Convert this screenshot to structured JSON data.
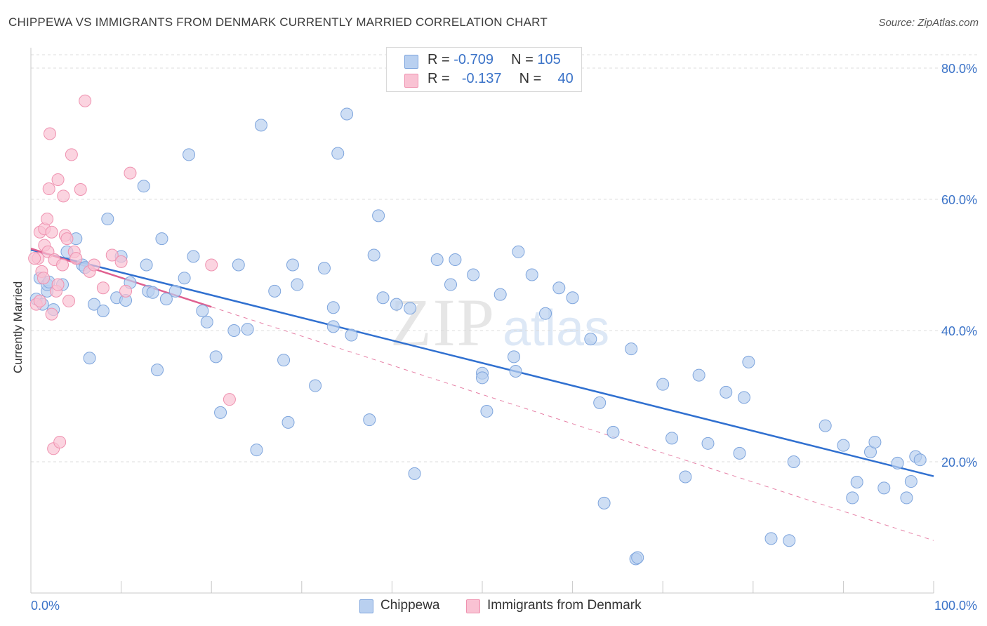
{
  "title": "CHIPPEWA VS IMMIGRANTS FROM DENMARK CURRENTLY MARRIED CORRELATION CHART",
  "source": "Source: ZipAtlas.com",
  "watermark_zip": "ZIP",
  "watermark_atlas": "atlas",
  "legend_top": {
    "rows": [
      {
        "r_label": "R =",
        "r_value": "-0.709",
        "n_label": "N =",
        "n_value": "105"
      },
      {
        "r_label": "R =",
        "r_value": "-0.137",
        "n_label": "N =",
        "n_value": "40"
      }
    ]
  },
  "legend_bottom": {
    "items": [
      {
        "label": "Chippewa"
      },
      {
        "label": "Immigrants from Denmark"
      }
    ]
  },
  "colors": {
    "blue_fill": "#b9d0f0",
    "blue_stroke": "#7ea5dd",
    "blue_line": "#3070d0",
    "pink_fill": "#f9c2d3",
    "pink_stroke": "#ef92b0",
    "pink_line": "#e06090",
    "axis_text": "#3b73c8",
    "grid": "#dcdcdc"
  },
  "chart_data": {
    "type": "scatter",
    "title": "CHIPPEWA VS IMMIGRANTS FROM DENMARK CURRENTLY MARRIED CORRELATION CHART",
    "xlabel": "",
    "ylabel": "Currently Married",
    "xlim": [
      0,
      100
    ],
    "ylim": [
      0,
      80.0
    ],
    "x_tick_labels": [
      "0.0%",
      "100.0%"
    ],
    "y_ticks": [
      20,
      40,
      60,
      80
    ],
    "y_tick_labels": [
      "20.0%",
      "40.0%",
      "60.0%",
      "80.0%"
    ],
    "grid": true,
    "legend_position": "top-center",
    "series": [
      {
        "name": "Chippewa",
        "color": "#b9d0f0",
        "points": [
          [
            1.8,
            46.0
          ],
          [
            0.6,
            44.8
          ],
          [
            1.3,
            44.0
          ],
          [
            1.0,
            48.0
          ],
          [
            1.8,
            47.0
          ],
          [
            2.0,
            47.4
          ],
          [
            3.5,
            47.0
          ],
          [
            4.0,
            52.0
          ],
          [
            5.0,
            54.0
          ],
          [
            5.7,
            50.0
          ],
          [
            6.0,
            49.6
          ],
          [
            7.0,
            44.0
          ],
          [
            8.0,
            43.0
          ],
          [
            8.5,
            57.0
          ],
          [
            9.5,
            45.0
          ],
          [
            10.0,
            51.3
          ],
          [
            10.5,
            44.6
          ],
          [
            11.0,
            47.3
          ],
          [
            12.5,
            62.0
          ],
          [
            12.8,
            50.0
          ],
          [
            13.0,
            46.0
          ],
          [
            13.5,
            45.8
          ],
          [
            14.0,
            34.0
          ],
          [
            14.5,
            54.0
          ],
          [
            15.0,
            44.8
          ],
          [
            16.0,
            46.0
          ],
          [
            17.0,
            48.0
          ],
          [
            17.5,
            66.8
          ],
          [
            18.0,
            51.3
          ],
          [
            19.0,
            43.0
          ],
          [
            19.5,
            41.3
          ],
          [
            20.5,
            36.0
          ],
          [
            21.0,
            27.5
          ],
          [
            22.5,
            40.0
          ],
          [
            23.0,
            50.0
          ],
          [
            24.0,
            40.2
          ],
          [
            25.0,
            21.8
          ],
          [
            25.5,
            71.3
          ],
          [
            27.0,
            46.0
          ],
          [
            28.0,
            35.5
          ],
          [
            28.5,
            26.0
          ],
          [
            29.0,
            50.0
          ],
          [
            29.5,
            47.0
          ],
          [
            31.5,
            31.6
          ],
          [
            32.5,
            49.5
          ],
          [
            33.5,
            43.5
          ],
          [
            33.5,
            40.6
          ],
          [
            34.0,
            67.0
          ],
          [
            35.0,
            73.0
          ],
          [
            35.5,
            39.3
          ],
          [
            37.5,
            26.4
          ],
          [
            38.0,
            51.5
          ],
          [
            38.5,
            57.5
          ],
          [
            39.0,
            45.0
          ],
          [
            40.5,
            44.0
          ],
          [
            42.0,
            43.4
          ],
          [
            42.5,
            18.2
          ],
          [
            45.0,
            50.8
          ],
          [
            46.5,
            47.0
          ],
          [
            47.0,
            50.8
          ],
          [
            49.0,
            48.5
          ],
          [
            50.0,
            33.5
          ],
          [
            50.0,
            32.8
          ],
          [
            50.5,
            27.7
          ],
          [
            52.0,
            45.5
          ],
          [
            53.5,
            36.0
          ],
          [
            53.7,
            33.8
          ],
          [
            54.0,
            52.0
          ],
          [
            55.5,
            48.5
          ],
          [
            57.0,
            42.6
          ],
          [
            58.5,
            46.5
          ],
          [
            60.0,
            45.0
          ],
          [
            62.0,
            38.7
          ],
          [
            63.0,
            29.0
          ],
          [
            63.5,
            13.7
          ],
          [
            64.5,
            24.5
          ],
          [
            66.5,
            37.2
          ],
          [
            67.0,
            5.2
          ],
          [
            67.2,
            5.4
          ],
          [
            70.0,
            31.8
          ],
          [
            71.0,
            23.6
          ],
          [
            72.5,
            17.7
          ],
          [
            74.0,
            33.2
          ],
          [
            75.0,
            22.8
          ],
          [
            77.0,
            30.6
          ],
          [
            78.5,
            21.3
          ],
          [
            79.0,
            29.8
          ],
          [
            79.5,
            35.2
          ],
          [
            82.0,
            8.3
          ],
          [
            84.0,
            8.0
          ],
          [
            84.5,
            20.0
          ],
          [
            88.0,
            25.5
          ],
          [
            90.0,
            22.5
          ],
          [
            91.0,
            14.5
          ],
          [
            91.5,
            16.9
          ],
          [
            93.0,
            21.5
          ],
          [
            93.5,
            23.0
          ],
          [
            94.5,
            16.0
          ],
          [
            96.0,
            19.8
          ],
          [
            97.0,
            14.5
          ],
          [
            97.5,
            17.0
          ],
          [
            98.0,
            20.8
          ],
          [
            98.5,
            20.3
          ],
          [
            6.5,
            35.8
          ],
          [
            2.5,
            43.2
          ]
        ]
      },
      {
        "name": "Immigrants from Denmark",
        "color": "#f9c2d3",
        "points": [
          [
            0.6,
            44.0
          ],
          [
            0.8,
            51.0
          ],
          [
            1.0,
            55.0
          ],
          [
            1.2,
            49.0
          ],
          [
            1.5,
            55.5
          ],
          [
            1.5,
            53.0
          ],
          [
            1.8,
            57.0
          ],
          [
            1.9,
            52.0
          ],
          [
            2.0,
            61.6
          ],
          [
            2.1,
            70.0
          ],
          [
            2.3,
            55.0
          ],
          [
            2.3,
            42.5
          ],
          [
            2.5,
            22.0
          ],
          [
            2.6,
            50.8
          ],
          [
            2.8,
            46.0
          ],
          [
            3.0,
            47.0
          ],
          [
            3.0,
            63.0
          ],
          [
            3.2,
            23.0
          ],
          [
            3.5,
            50.0
          ],
          [
            3.6,
            60.5
          ],
          [
            3.8,
            54.5
          ],
          [
            4.0,
            54.0
          ],
          [
            4.2,
            44.5
          ],
          [
            4.5,
            66.8
          ],
          [
            4.8,
            52.0
          ],
          [
            5.0,
            51.0
          ],
          [
            5.5,
            61.5
          ],
          [
            6.0,
            75.0
          ],
          [
            6.5,
            49.0
          ],
          [
            7.0,
            50.0
          ],
          [
            8.0,
            46.5
          ],
          [
            9.0,
            51.5
          ],
          [
            10.0,
            50.5
          ],
          [
            10.5,
            46.0
          ],
          [
            11.0,
            64.0
          ],
          [
            20.0,
            50.0
          ],
          [
            22.0,
            29.5
          ],
          [
            0.4,
            51.0
          ],
          [
            1.0,
            44.5
          ],
          [
            1.4,
            48.0
          ]
        ]
      }
    ],
    "trendlines": [
      {
        "series": "Chippewa",
        "x": [
          0,
          100
        ],
        "y": [
          52.3,
          17.8
        ],
        "style": "solid"
      },
      {
        "series": "Immigrants from Denmark",
        "x": [
          0,
          20
        ],
        "y": [
          52.5,
          43.6
        ],
        "style": "solid"
      },
      {
        "series": "Immigrants from Denmark",
        "x": [
          20,
          100
        ],
        "y": [
          43.6,
          8.0
        ],
        "style": "dashed"
      }
    ]
  }
}
